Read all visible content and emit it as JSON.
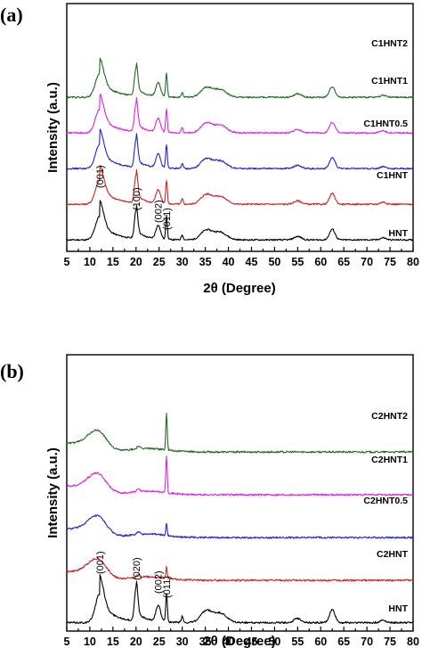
{
  "chart_data": [
    {
      "type": "line",
      "panel_label": "(a)",
      "xlabel": "2θ (Degree)",
      "ylabel": "Intensity (a.u.)",
      "xlim": [
        5,
        80
      ],
      "x_ticks": [
        "5",
        "10",
        "15",
        "20",
        "25",
        "30",
        "35",
        "40",
        "45",
        "50",
        "55",
        "60",
        "65",
        "70",
        "75",
        "80"
      ],
      "y_ticks": "none",
      "grid": false,
      "peak_labels": [
        "(001)",
        "(100)",
        "(002)",
        "(011)"
      ],
      "series": [
        {
          "name": "HNT",
          "color": "#000000",
          "offset": 0
        },
        {
          "name": "C1HNT",
          "color": "#cc2222",
          "offset": 1
        },
        {
          "name": "C1HNT0.5",
          "color": "#2222cc",
          "offset": 2
        },
        {
          "name": "C1HNT1",
          "color": "#dd22dd",
          "offset": 3
        },
        {
          "name": "C1HNT2",
          "color": "#1e6b1e",
          "offset": 4
        }
      ],
      "peaks_2theta": [
        12.1,
        20.0,
        24.8,
        26.6,
        35.0,
        38.0,
        55.0,
        62.5
      ]
    },
    {
      "type": "line",
      "panel_label": "(b)",
      "xlabel": "2θ (Degree)",
      "ylabel": "Intensity (a.u.)",
      "xlim": [
        5,
        80
      ],
      "x_ticks": [
        "5",
        "10",
        "15",
        "20",
        "25",
        "30",
        "35",
        "40",
        "45",
        "50",
        "55",
        "60",
        "65",
        "70",
        "75",
        "80"
      ],
      "y_ticks": "none",
      "grid": false,
      "peak_labels": [
        "(001)",
        "(020)",
        "(002)",
        "(011)"
      ],
      "series": [
        {
          "name": "HNT",
          "color": "#000000",
          "offset": 0
        },
        {
          "name": "C2HNT",
          "color": "#cc2222",
          "offset": 1
        },
        {
          "name": "C2HNT0.5",
          "color": "#2222cc",
          "offset": 2
        },
        {
          "name": "C2HNT1",
          "color": "#dd22dd",
          "offset": 3
        },
        {
          "name": "C2HNT2",
          "color": "#1e6b1e",
          "offset": 4
        }
      ],
      "peaks_2theta": [
        12.1,
        20.0,
        24.8,
        26.6,
        35.0,
        38.0,
        55.0,
        62.5
      ]
    }
  ]
}
